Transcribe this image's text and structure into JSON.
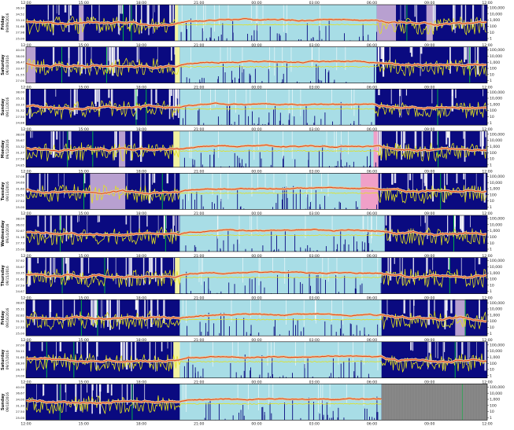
{
  "chart_data": {
    "type": "actogram",
    "x_ticks": [
      "12:00",
      "15:00",
      "18:00",
      "21:00",
      "00:00",
      "03:00",
      "06:00",
      "09:00",
      "12:00"
    ],
    "right_axis_ticks": [
      "100,000",
      "10,000",
      "1,000",
      "100",
      "10",
      "1"
    ],
    "right_axis_values": [
      100000,
      10000,
      1000,
      100,
      10,
      1
    ],
    "colors": {
      "activity": "#0a0a80",
      "temperature": "#e2e21e",
      "light": "#e04a1a",
      "light_band": "#e8c9a0",
      "sleep_period": "#a8dde6",
      "nap": "#b8a0d0",
      "dim_pink": "#f0a0c8",
      "yellow_band": "#f2f2a0",
      "off_wrist": "#8a8a8a",
      "green_marker": "#00c040"
    },
    "days": [
      {
        "day": "Friday",
        "date": "09/09/2016",
        "left_ticks": [
          "36.93",
          "34.52",
          "33.10",
          "31.68",
          "27.98",
          "25.00"
        ],
        "sleep_start": "19:45",
        "sleep_end": "06:15",
        "segments": [
          [
            "14:45",
            "15:00",
            "nap"
          ],
          [
            "19:45",
            "19:55",
            "yellow_band"
          ],
          [
            "06:15",
            "07:15",
            "nap"
          ],
          [
            "08:50",
            "09:10",
            "nap"
          ]
        ]
      },
      {
        "day": "Saturday",
        "date": "09/10/2016",
        "left_ticks": [
          "40.00",
          "38.00",
          "36.47",
          "33.47",
          "31.55",
          "27.00"
        ],
        "sleep_start": "20:00",
        "sleep_end": "06:15",
        "segments": [
          [
            "12:00",
            "12:30",
            "nap"
          ],
          [
            "19:45",
            "20:00",
            "yellow_band"
          ]
        ]
      },
      {
        "day": "Sunday",
        "date": "09/11/2016",
        "left_ticks": [
          "38.00",
          "35.11",
          "33.10",
          "31.32",
          "27.50",
          "24.88"
        ],
        "sleep_start": "20:00",
        "sleep_end": "06:10",
        "segments": []
      },
      {
        "day": "Monday",
        "date": "09/12/2016",
        "left_ticks": [
          "38.00",
          "35.67",
          "33.32",
          "31.27",
          "27.58",
          "24.85"
        ],
        "sleep_start": "20:00",
        "sleep_end": "06:20",
        "segments": [
          [
            "16:50",
            "17:10",
            "nap"
          ],
          [
            "19:40",
            "20:00",
            "yellow_band"
          ],
          [
            "06:05",
            "06:20",
            "dim_pink"
          ]
        ]
      },
      {
        "day": "Tuesday",
        "date": "09/13/2016",
        "left_ticks": [
          "37.08",
          "34.69",
          "31.60",
          "29.51",
          "27.52",
          "25.00"
        ],
        "sleep_start": "20:00",
        "sleep_end": "06:20",
        "segments": [
          [
            "15:20",
            "17:10",
            "nap"
          ],
          [
            "05:25",
            "06:20",
            "dim_pink"
          ]
        ]
      },
      {
        "day": "Wednesday",
        "date": "09/14/2016",
        "left_ticks": [
          "38.04",
          "36.02",
          "32.67",
          "31.18",
          "27.73",
          "25.00"
        ],
        "sleep_start": "20:00",
        "sleep_end": "06:40",
        "segments": []
      },
      {
        "day": "Thursday",
        "date": "09/15/2016",
        "left_ticks": [
          "37.92",
          "35.67",
          "33.35",
          "31.62",
          "27.59",
          "24.67"
        ],
        "sleep_start": "20:00",
        "sleep_end": "06:30",
        "segments": [
          [
            "19:45",
            "20:00",
            "yellow_band"
          ]
        ]
      },
      {
        "day": "Friday",
        "date": "09/16/2016",
        "left_ticks": [
          "38.85",
          "35.11",
          "32.82",
          "31.21",
          "27.33",
          "25.00"
        ],
        "sleep_start": "20:00",
        "sleep_end": "06:30",
        "segments": [
          [
            "10:20",
            "10:50",
            "nap"
          ]
        ]
      },
      {
        "day": "Saturday",
        "date": "09/17/2016",
        "left_ticks": [
          "37.00",
          "34.11",
          "31.65",
          "28.30",
          "26.77",
          "24.00"
        ],
        "sleep_start": "20:00",
        "sleep_end": "06:30",
        "segments": [
          [
            "19:40",
            "20:00",
            "yellow_band"
          ]
        ]
      },
      {
        "day": "Sunday",
        "date": "09/18/2016",
        "left_ticks": [
          "40.00",
          "36.67",
          "34.00",
          "31.33",
          "27.50",
          "25.00"
        ],
        "sleep_start": "20:00",
        "sleep_end": "06:30",
        "segments": [
          [
            "06:30",
            "12:00",
            "off_wrist"
          ]
        ]
      }
    ]
  }
}
